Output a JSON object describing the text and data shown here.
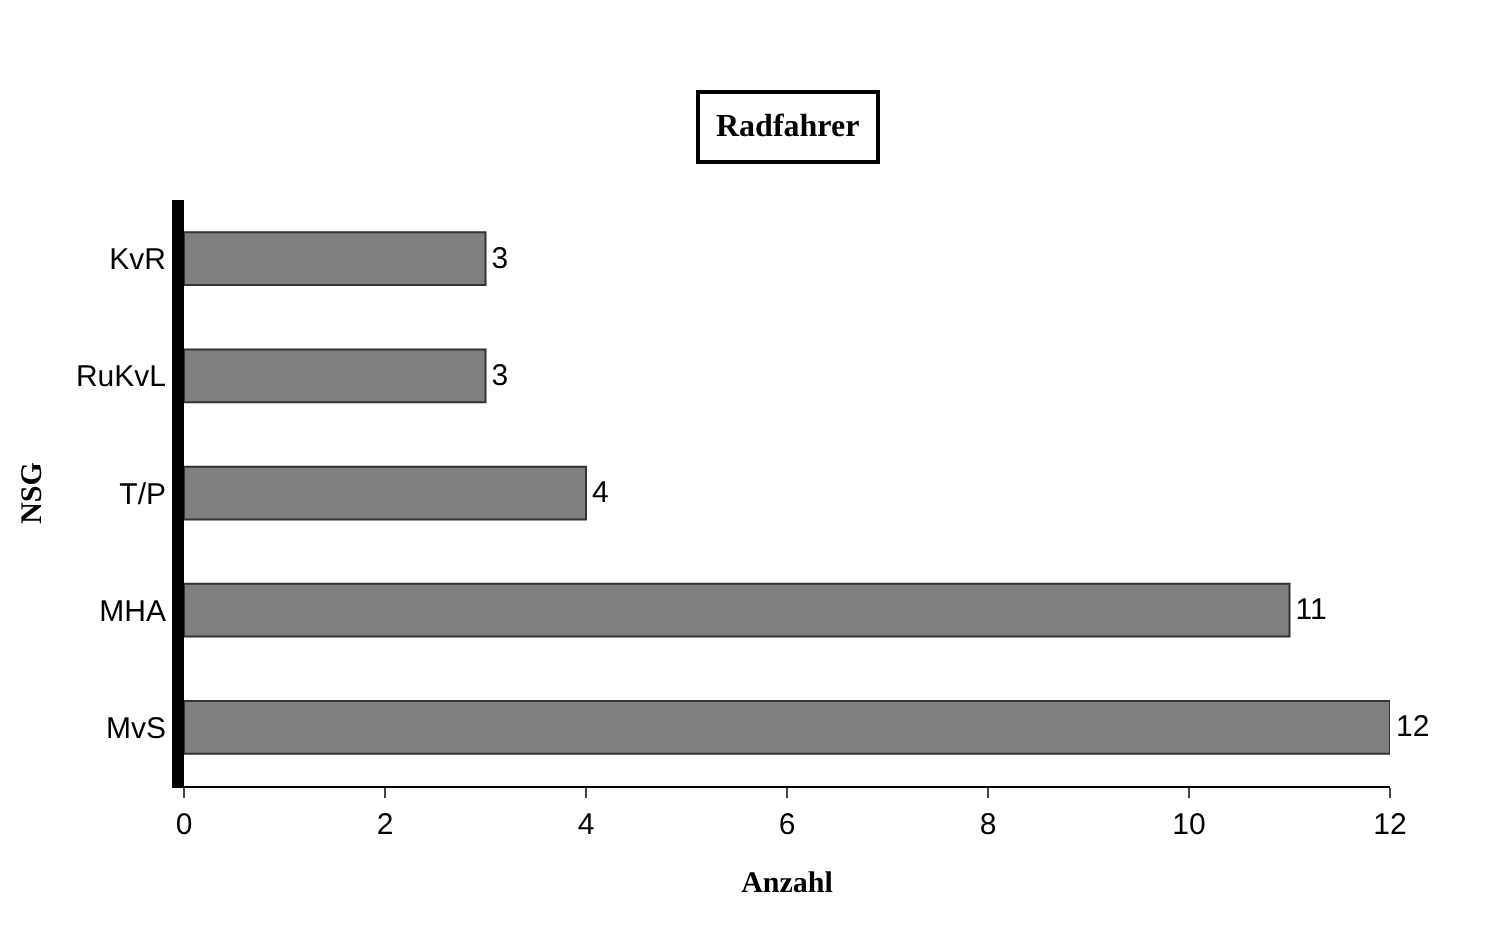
{
  "chart_data": {
    "type": "bar",
    "orientation": "horizontal",
    "title": "Radfahrer",
    "xlabel": "Anzahl",
    "ylabel": "NSG",
    "categories": [
      "KvR",
      "RuKvL",
      "T/P",
      "MHA",
      "MvS"
    ],
    "values": [
      3,
      3,
      4,
      11,
      12
    ],
    "color": "#7f7f7f",
    "xlim": [
      0,
      12
    ],
    "xticks": [
      0,
      2,
      4,
      6,
      8,
      10,
      12
    ],
    "data_labels": true,
    "legend": false
  }
}
